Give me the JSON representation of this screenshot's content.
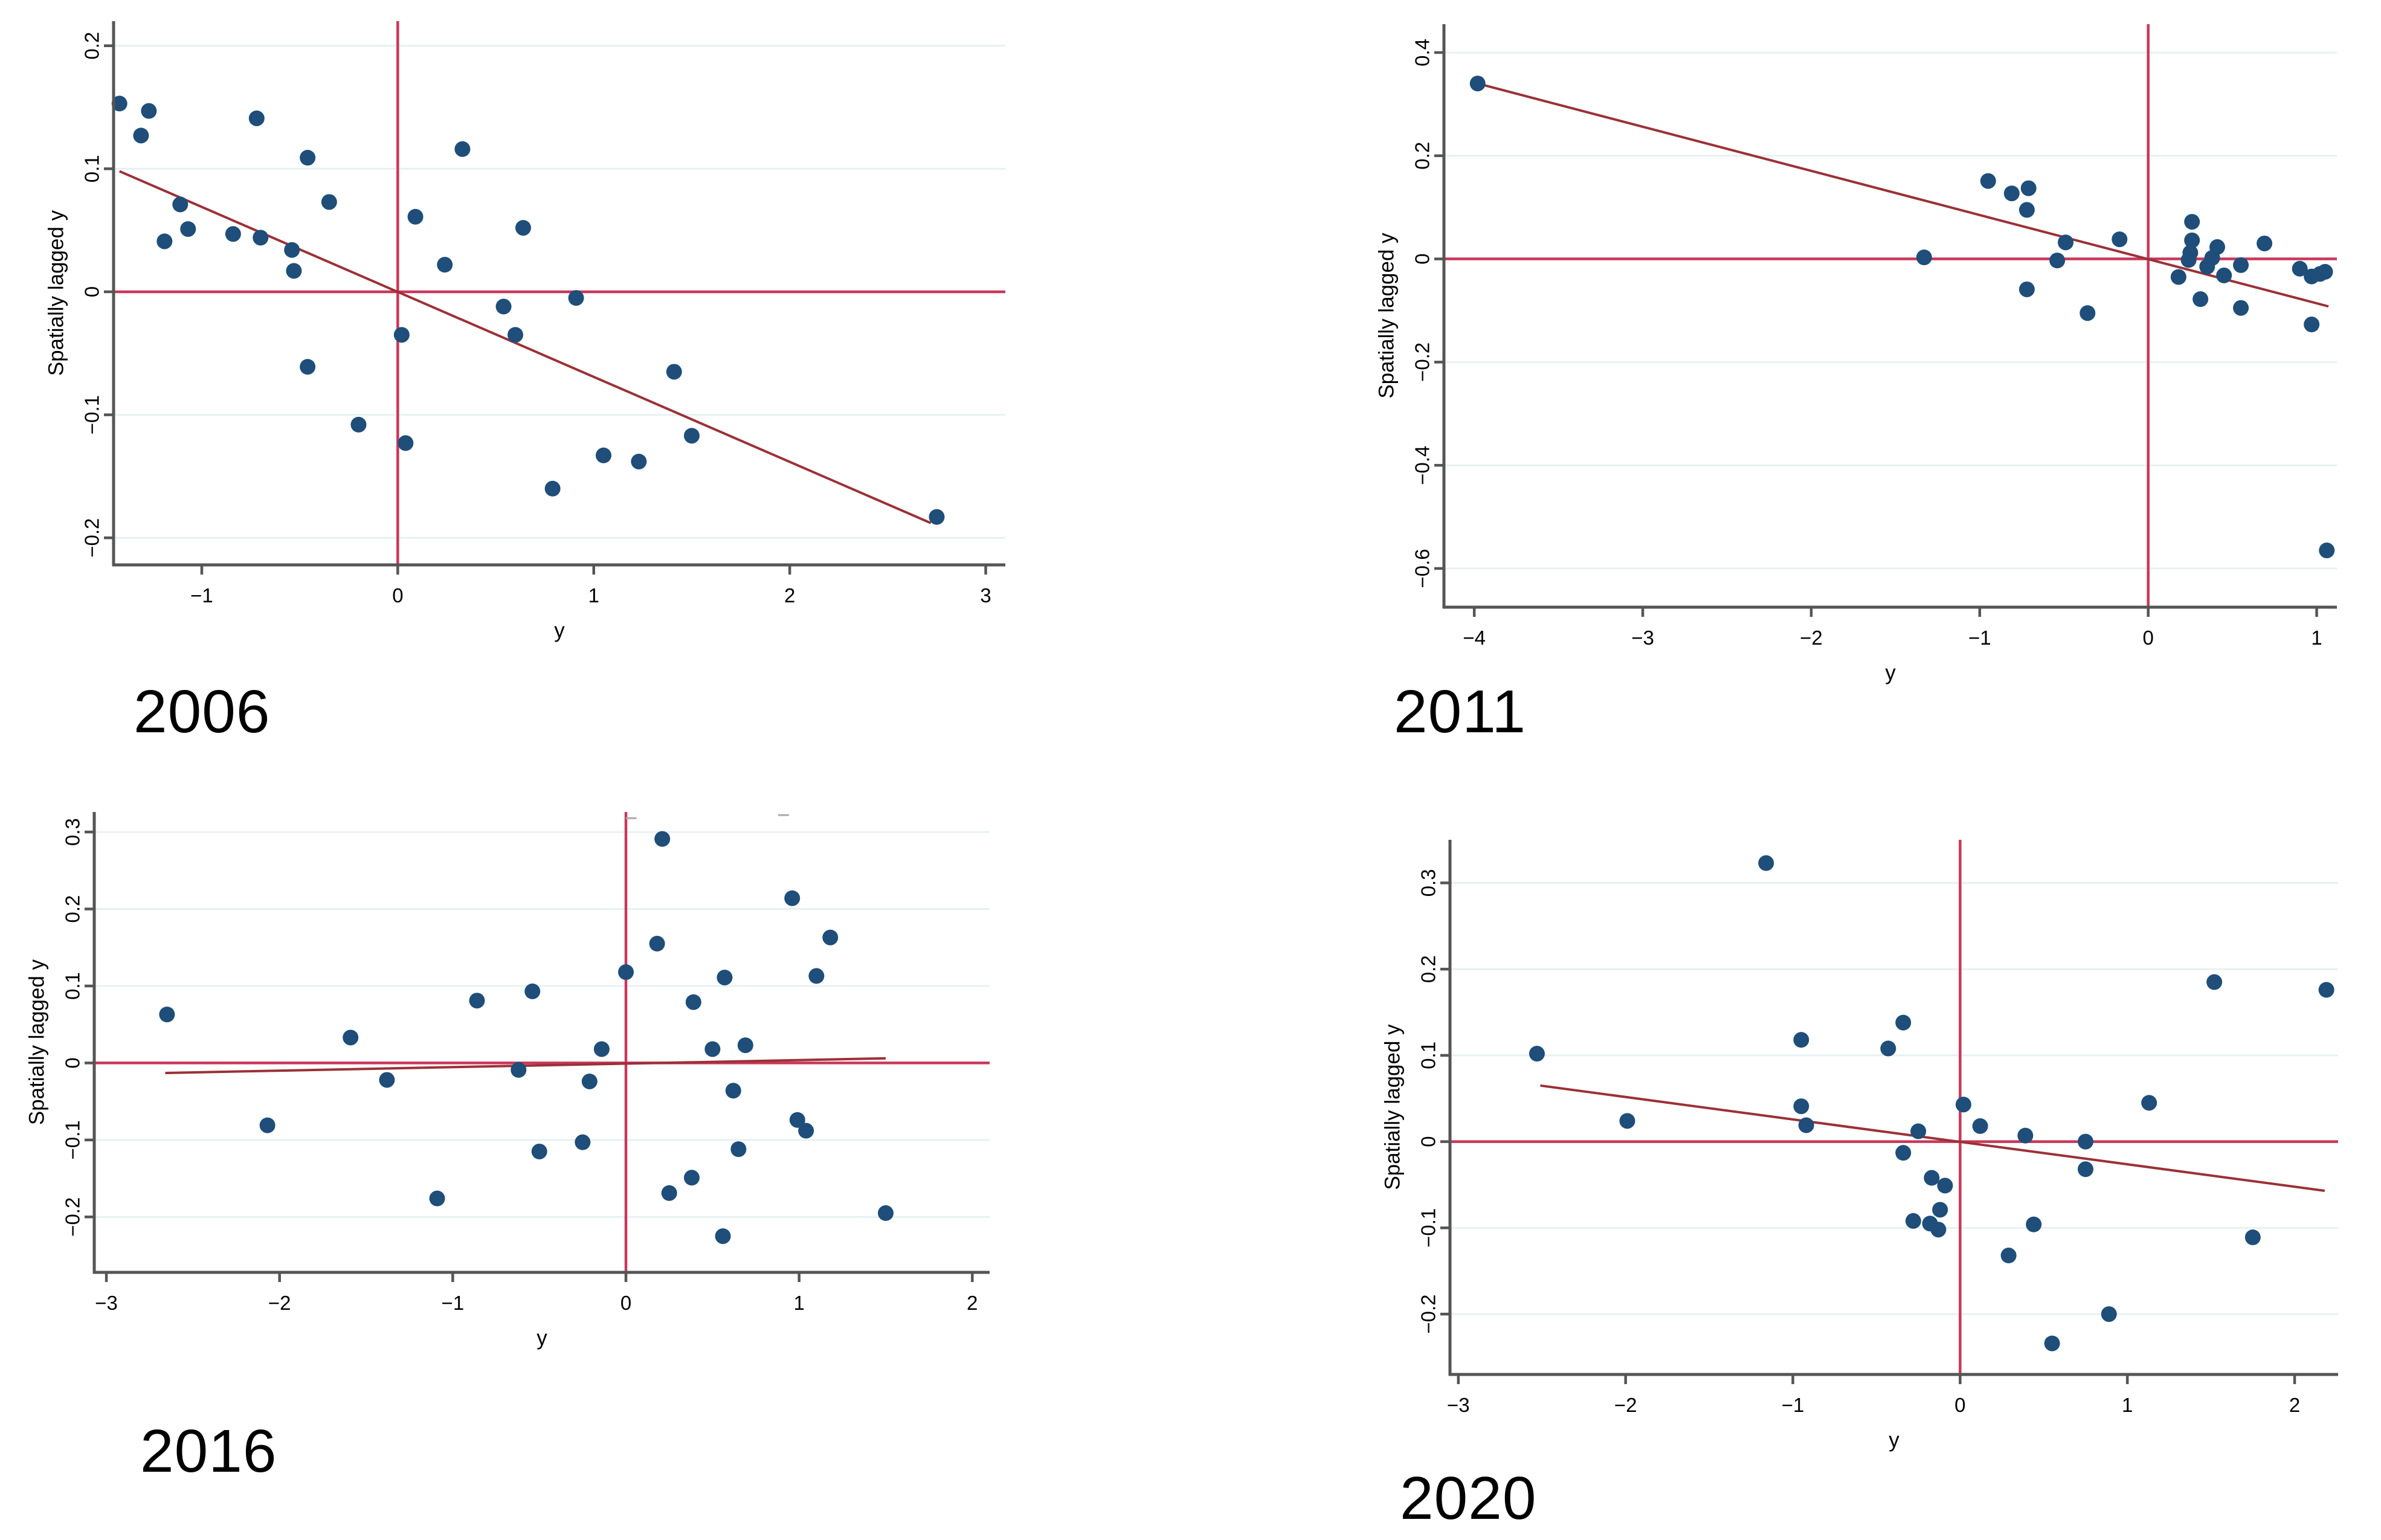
{
  "figure": {
    "background": "#ffffff",
    "description": "Four Moran scatter plots of y versus spatially lagged y for 2006, 2011, 2016 and 2020"
  },
  "style": {
    "dot_color": "#1E4E79",
    "refline_color": "#C8375A",
    "fitline_color": "#9B3137",
    "grid_color": "#E7F1F1",
    "axis_color": "#555555",
    "artifact_color": "#AAAAAA",
    "text_color": "#000000"
  },
  "chart_data": {
    "type": "scatter",
    "grid": true,
    "legend": false,
    "panels": [
      {
        "id": "p2006",
        "label": "2006",
        "xlabel": "y",
        "ylabel": "Spatially lagged y",
        "xlim": [
          -1.45,
          3.1
        ],
        "ylim": [
          -0.222,
          0.22
        ],
        "xticks": [
          {
            "v": -1,
            "t": "−1"
          },
          {
            "v": 0,
            "t": "0"
          },
          {
            "v": 1,
            "t": "1"
          },
          {
            "v": 2,
            "t": "2"
          },
          {
            "v": 3,
            "t": "3"
          }
        ],
        "yticks": [
          {
            "v": 0.2,
            "t": "0.2"
          },
          {
            "v": 0.1,
            "t": "0.1"
          },
          {
            "v": 0,
            "t": "0"
          },
          {
            "v": -0.1,
            "t": "−0.1"
          },
          {
            "v": -0.2,
            "t": "−0.2"
          }
        ],
        "refline_x": 0,
        "refline_y": 0,
        "fit": {
          "x1": -1.42,
          "y1": 0.098,
          "x2": 2.72,
          "y2": -0.188
        },
        "points": [
          [
            -1.42,
            0.153
          ],
          [
            -1.27,
            0.147
          ],
          [
            -1.31,
            0.127
          ],
          [
            -0.72,
            0.141
          ],
          [
            -0.46,
            0.109
          ],
          [
            -1.11,
            0.071
          ],
          [
            -1.07,
            0.051
          ],
          [
            -1.19,
            0.041
          ],
          [
            -0.84,
            0.047
          ],
          [
            -0.7,
            0.044
          ],
          [
            -0.54,
            0.034
          ],
          [
            -0.53,
            0.017
          ],
          [
            -0.35,
            0.073
          ],
          [
            0.09,
            0.061
          ],
          [
            0.33,
            0.116
          ],
          [
            0.24,
            0.022
          ],
          [
            0.64,
            0.052
          ],
          [
            0.54,
            -0.012
          ],
          [
            0.02,
            -0.035
          ],
          [
            0.6,
            -0.035
          ],
          [
            -0.46,
            -0.061
          ],
          [
            -0.2,
            -0.108
          ],
          [
            0.04,
            -0.123
          ],
          [
            0.79,
            -0.16
          ],
          [
            0.91,
            -0.005
          ],
          [
            1.41,
            -0.065
          ],
          [
            1.5,
            -0.117
          ],
          [
            1.05,
            -0.133
          ],
          [
            1.23,
            -0.138
          ],
          [
            2.75,
            -0.183
          ]
        ],
        "marks": []
      },
      {
        "id": "p2011",
        "label": "2011",
        "xlabel": "y",
        "ylabel": "Spatially lagged y",
        "xlim": [
          -4.18,
          1.12
        ],
        "ylim": [
          -0.675,
          0.455
        ],
        "xticks": [
          {
            "v": -4,
            "t": "−4"
          },
          {
            "v": -3,
            "t": "−3"
          },
          {
            "v": -2,
            "t": "−2"
          },
          {
            "v": -1,
            "t": "−1"
          },
          {
            "v": 0,
            "t": "0"
          },
          {
            "v": 1,
            "t": "1"
          }
        ],
        "yticks": [
          {
            "v": 0.4,
            "t": "0.4"
          },
          {
            "v": 0.2,
            "t": "0.2"
          },
          {
            "v": 0,
            "t": "0"
          },
          {
            "v": -0.2,
            "t": "−0.2"
          },
          {
            "v": -0.4,
            "t": "−0.4"
          },
          {
            "v": -0.6,
            "t": "−0.6"
          }
        ],
        "refline_x": 0,
        "refline_y": 0,
        "fit": {
          "x1": -3.98,
          "y1": 0.34,
          "x2": 1.07,
          "y2": -0.092
        },
        "points": [
          [
            -3.98,
            0.34
          ],
          [
            -1.33,
            0.003
          ],
          [
            -0.95,
            0.151
          ],
          [
            -0.81,
            0.127
          ],
          [
            -0.71,
            0.137
          ],
          [
            -0.72,
            0.095
          ],
          [
            -0.49,
            0.032
          ],
          [
            -0.54,
            -0.003
          ],
          [
            -0.72,
            -0.059
          ],
          [
            -0.36,
            -0.105
          ],
          [
            -0.17,
            0.038
          ],
          [
            0.26,
            0.072
          ],
          [
            0.26,
            0.036
          ],
          [
            0.25,
            0.012
          ],
          [
            0.24,
            -0.002
          ],
          [
            0.18,
            -0.035
          ],
          [
            0.35,
            -0.015
          ],
          [
            0.38,
            0.002
          ],
          [
            0.41,
            0.023
          ],
          [
            0.31,
            -0.078
          ],
          [
            0.45,
            -0.032
          ],
          [
            0.55,
            -0.012
          ],
          [
            0.55,
            -0.095
          ],
          [
            0.69,
            0.03
          ],
          [
            0.9,
            -0.019
          ],
          [
            0.97,
            -0.034
          ],
          [
            1.02,
            -0.029
          ],
          [
            1.05,
            -0.025
          ],
          [
            0.97,
            -0.127
          ],
          [
            1.06,
            -0.565
          ]
        ],
        "marks": []
      },
      {
        "id": "p2016",
        "label": "2016",
        "xlabel": "y",
        "ylabel": "Spatially lagged y",
        "xlim": [
          -3.07,
          2.1
        ],
        "ylim": [
          -0.272,
          0.326
        ],
        "xticks": [
          {
            "v": -3,
            "t": "−3"
          },
          {
            "v": -2,
            "t": "−2"
          },
          {
            "v": -1,
            "t": "−1"
          },
          {
            "v": 0,
            "t": "0"
          },
          {
            "v": 1,
            "t": "1"
          },
          {
            "v": 2,
            "t": "2"
          }
        ],
        "yticks": [
          {
            "v": 0.3,
            "t": "0.3"
          },
          {
            "v": 0.2,
            "t": "0.2"
          },
          {
            "v": 0.1,
            "t": "0.1"
          },
          {
            "v": 0,
            "t": "0"
          },
          {
            "v": -0.1,
            "t": "−0.1"
          },
          {
            "v": -0.2,
            "t": "−0.2"
          }
        ],
        "refline_x": 0,
        "refline_y": 0,
        "fit": {
          "x1": -2.66,
          "y1": -0.013,
          "x2": 1.5,
          "y2": 0.006
        },
        "points": [
          [
            -2.65,
            0.063
          ],
          [
            -1.59,
            0.033
          ],
          [
            -2.07,
            -0.081
          ],
          [
            -1.38,
            -0.022
          ],
          [
            -0.86,
            0.081
          ],
          [
            -0.54,
            0.093
          ],
          [
            -0.62,
            -0.009
          ],
          [
            -0.5,
            -0.115
          ],
          [
            -1.09,
            -0.176
          ],
          [
            0.21,
            0.291
          ],
          [
            0.96,
            0.214
          ],
          [
            1.18,
            0.163
          ],
          [
            0.18,
            0.155
          ],
          [
            0.0,
            0.118
          ],
          [
            0.57,
            0.111
          ],
          [
            1.1,
            0.113
          ],
          [
            0.39,
            0.079
          ],
          [
            0.5,
            0.018
          ],
          [
            0.69,
            0.023
          ],
          [
            -0.14,
            0.018
          ],
          [
            -0.21,
            -0.024
          ],
          [
            0.62,
            -0.036
          ],
          [
            0.99,
            -0.074
          ],
          [
            1.04,
            -0.088
          ],
          [
            -0.25,
            -0.103
          ],
          [
            0.25,
            -0.169
          ],
          [
            0.38,
            -0.149
          ],
          [
            0.65,
            -0.112
          ],
          [
            1.5,
            -0.195
          ],
          [
            0.56,
            -0.225
          ]
        ],
        "marks": [
          [
            0.03,
            0.318
          ],
          [
            0.91,
            0.322
          ]
        ]
      },
      {
        "id": "p2020",
        "label": "2020",
        "xlabel": "y",
        "ylabel": "Spatially lagged y",
        "xlim": [
          -3.05,
          2.26
        ],
        "ylim": [
          -0.27,
          0.35
        ],
        "xticks": [
          {
            "v": -3,
            "t": "−3"
          },
          {
            "v": -2,
            "t": "−2"
          },
          {
            "v": -1,
            "t": "−1"
          },
          {
            "v": 0,
            "t": "0"
          },
          {
            "v": 1,
            "t": "1"
          },
          {
            "v": 2,
            "t": "2"
          }
        ],
        "yticks": [
          {
            "v": 0.3,
            "t": "0.3"
          },
          {
            "v": 0.2,
            "t": "0.2"
          },
          {
            "v": 0.1,
            "t": "0.1"
          },
          {
            "v": 0,
            "t": "0"
          },
          {
            "v": -0.1,
            "t": "−0.1"
          },
          {
            "v": -0.2,
            "t": "−0.2"
          }
        ],
        "refline_x": 0,
        "refline_y": 0,
        "fit": {
          "x1": -2.51,
          "y1": 0.065,
          "x2": 2.18,
          "y2": -0.057
        },
        "points": [
          [
            -2.53,
            0.102
          ],
          [
            -1.99,
            0.024
          ],
          [
            -1.16,
            0.323
          ],
          [
            -0.95,
            0.118
          ],
          [
            -0.95,
            0.041
          ],
          [
            -0.92,
            0.019
          ],
          [
            -0.43,
            0.108
          ],
          [
            -0.34,
            0.138
          ],
          [
            -0.34,
            -0.013
          ],
          [
            -0.25,
            0.012
          ],
          [
            -0.28,
            -0.092
          ],
          [
            -0.18,
            -0.095
          ],
          [
            -0.13,
            -0.102
          ],
          [
            -0.12,
            -0.079
          ],
          [
            -0.17,
            -0.042
          ],
          [
            -0.09,
            -0.051
          ],
          [
            0.02,
            0.043
          ],
          [
            0.12,
            0.018
          ],
          [
            0.39,
            0.007
          ],
          [
            0.75,
            0.0
          ],
          [
            0.75,
            -0.032
          ],
          [
            1.13,
            0.045
          ],
          [
            0.44,
            -0.096
          ],
          [
            0.29,
            -0.132
          ],
          [
            1.75,
            -0.111
          ],
          [
            0.89,
            -0.2
          ],
          [
            0.55,
            -0.234
          ],
          [
            1.52,
            0.185
          ],
          [
            2.19,
            0.176
          ]
        ],
        "marks": []
      }
    ]
  }
}
